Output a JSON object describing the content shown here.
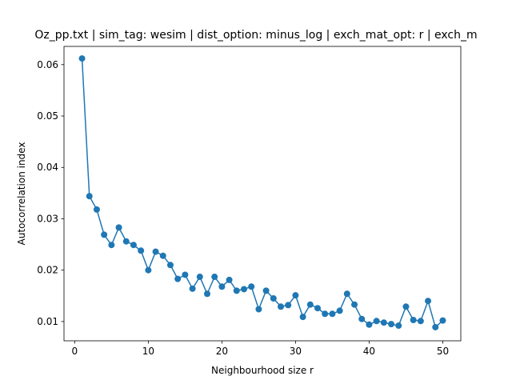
{
  "chart_data": {
    "type": "line",
    "title": "Oz_pp.txt | sim_tag: wesim | dist_option: minus_log | exch_mat_opt: r | exch_m",
    "xlabel": "Neighbourhood size r",
    "ylabel": "Autocorrelation index",
    "xlim": [
      -1.45,
      52.45
    ],
    "ylim": [
      0.00625,
      0.06355
    ],
    "xticks": [
      0,
      10,
      20,
      30,
      40,
      50
    ],
    "yticks": [
      0.01,
      0.02,
      0.03,
      0.04,
      0.05,
      0.06
    ],
    "ytick_labels": [
      "0.01",
      "0.02",
      "0.03",
      "0.04",
      "0.05",
      "0.06"
    ],
    "grid": false,
    "marker": "circle",
    "series_color": "#1f77b4",
    "series": [
      {
        "x": [
          1,
          2,
          3,
          4,
          5,
          6,
          7,
          8,
          9,
          10,
          11,
          12,
          13,
          14,
          15,
          16,
          17,
          18,
          19,
          20,
          21,
          22,
          23,
          24,
          25,
          26,
          27,
          28,
          29,
          30,
          31,
          32,
          33,
          34,
          35,
          36,
          37,
          38,
          39,
          40,
          41,
          42,
          43,
          44,
          45,
          46,
          47,
          48,
          49,
          50
        ],
        "values": [
          0.0612,
          0.0344,
          0.0318,
          0.0269,
          0.0249,
          0.0283,
          0.0256,
          0.0249,
          0.0238,
          0.02,
          0.0236,
          0.0228,
          0.021,
          0.0183,
          0.0191,
          0.0164,
          0.0187,
          0.0154,
          0.0187,
          0.0168,
          0.0181,
          0.016,
          0.0163,
          0.0168,
          0.0124,
          0.016,
          0.0145,
          0.0129,
          0.0132,
          0.0151,
          0.0109,
          0.0133,
          0.0126,
          0.0115,
          0.0115,
          0.0121,
          0.0154,
          0.0133,
          0.0105,
          0.0094,
          0.0101,
          0.0098,
          0.0095,
          0.0092,
          0.0129,
          0.0103,
          0.0101,
          0.014,
          0.0089,
          0.0102
        ]
      }
    ]
  }
}
